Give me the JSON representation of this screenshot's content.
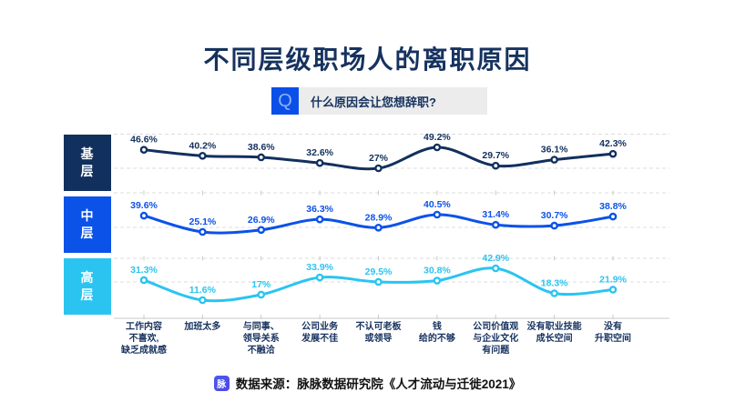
{
  "title": "不同层级职场人的离职原因",
  "banner": {
    "icon_letter": "Q",
    "question": "什么原因会让您想辞职?"
  },
  "chart_data": {
    "type": "line",
    "title": "不同层级职场人的离职原因",
    "subtitle_question": "什么原因会让您想辞职?",
    "unit": "%",
    "grid": {
      "horizontal_dashed": true,
      "vertical": false
    },
    "legend_position": "left-row-labels",
    "categories": [
      [
        "工作内容",
        "不喜欢,",
        "缺乏成就感"
      ],
      [
        "加班太多"
      ],
      [
        "与同事、",
        "领导关系",
        "不融洽"
      ],
      [
        "公司业务",
        "发展不佳"
      ],
      [
        "不认可老板",
        "或领导"
      ],
      [
        "钱",
        "给的不够"
      ],
      [
        "公司价值观",
        "与企业文化",
        "有问题"
      ],
      [
        "没有职业技能",
        "成长空间"
      ],
      [
        "没有",
        "升职空间"
      ]
    ],
    "series": [
      {
        "id": "base-level",
        "name": "基层",
        "color": "#12305e",
        "values": [
          46.6,
          40.2,
          38.6,
          32.6,
          27,
          49.2,
          29.7,
          36.1,
          42.3
        ],
        "labels": [
          "46.6%",
          "40.2%",
          "38.6%",
          "32.6%",
          "27%",
          "49.2%",
          "29.7%",
          "36.1%",
          "42.3%"
        ]
      },
      {
        "id": "mid-level",
        "name": "中层",
        "color": "#0b52e8",
        "values": [
          39.6,
          25.1,
          26.9,
          36.3,
          28.9,
          40.5,
          31.4,
          30.7,
          38.8
        ],
        "labels": [
          "39.6%",
          "25.1%",
          "26.9%",
          "36.3%",
          "28.9%",
          "40.5%",
          "31.4%",
          "30.7%",
          "38.8%"
        ]
      },
      {
        "id": "senior-level",
        "name": "高层",
        "color": "#2bc4f0",
        "values": [
          31.3,
          11.6,
          17,
          33.9,
          29.5,
          30.8,
          42.9,
          18.3,
          21.9
        ],
        "labels": [
          "31.3%",
          "11.6%",
          "17%",
          "33.9%",
          "29.5%",
          "30.8%",
          "42.9%",
          "18.3%",
          "21.9%"
        ]
      }
    ]
  },
  "footer": {
    "logo_letter": "脉",
    "source": "数据来源：脉脉数据研究院《人才流动与迁徙2021》"
  }
}
